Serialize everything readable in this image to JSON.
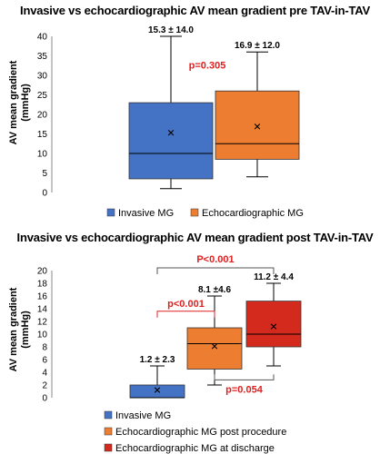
{
  "chart_data": [
    {
      "type": "box",
      "title": "Invasive vs echocardiographic AV mean gradient pre TAV-in-TAV",
      "ylabel": "AV mean gradient\n(mmHg)",
      "ylabel_lines": [
        "AV mean gradient",
        "(mmHg)"
      ],
      "ylim": [
        0,
        40
      ],
      "yticks": [
        0,
        5,
        10,
        15,
        20,
        25,
        30,
        35,
        40
      ],
      "grid": false,
      "legend_placement": "bottom",
      "series": [
        {
          "name": "Invasive MG",
          "color": "#4472c4",
          "min": 1,
          "q1": 3.5,
          "median": 10,
          "q3": 23,
          "max": 40,
          "mean": 15.3,
          "label": "15.3 ± 14.0"
        },
        {
          "name": "Echocardiographic  MG",
          "color": "#ed7d31",
          "min": 4,
          "q1": 8.5,
          "median": 12.5,
          "q3": 26,
          "max": 36,
          "mean": 16.9,
          "label": "16.9 ± 12.0"
        }
      ],
      "annotations": [
        {
          "text": "p=0.305",
          "between": [
            0,
            1
          ]
        }
      ]
    },
    {
      "type": "box",
      "title": "Invasive vs echocardiographic AV mean gradient post TAV-in-TAV",
      "ylabel": "AV mean gradient\n(mmHg)",
      "ylabel_lines": [
        "AV mean gradient",
        "(mmHg)"
      ],
      "ylim": [
        0,
        20
      ],
      "yticks": [
        0,
        2,
        4,
        6,
        8,
        10,
        12,
        14,
        16,
        18,
        20
      ],
      "grid": false,
      "legend_placement": "bottom",
      "series": [
        {
          "name": "Invasive MG",
          "color": "#4472c4",
          "min": 0,
          "q1": 0,
          "median": 0,
          "q3": 2,
          "max": 5,
          "mean": 1.2,
          "label": "1.2 ± 2.3"
        },
        {
          "name": "Echocardiographic  MG post procedure",
          "color": "#ed7d31",
          "min": 2,
          "q1": 4.5,
          "median": 8.5,
          "q3": 11,
          "max": 16,
          "mean": 8.1,
          "label": "8.1 ±4.6"
        },
        {
          "name": "Echocardiographic  MG at discharge",
          "color": "#d42a1e",
          "min": 5,
          "q1": 8,
          "median": 10,
          "q3": 15.2,
          "max": 18,
          "mean": 11.2,
          "label": "11.2 ± 4.4"
        }
      ],
      "annotations": [
        {
          "text": "P<0.001",
          "between": [
            0,
            2
          ],
          "position": "top"
        },
        {
          "text": "p<0.001",
          "between": [
            0,
            1
          ],
          "position": "middle"
        },
        {
          "text": "p=0.054",
          "between": [
            1,
            2
          ],
          "position": "bottom"
        }
      ]
    }
  ]
}
